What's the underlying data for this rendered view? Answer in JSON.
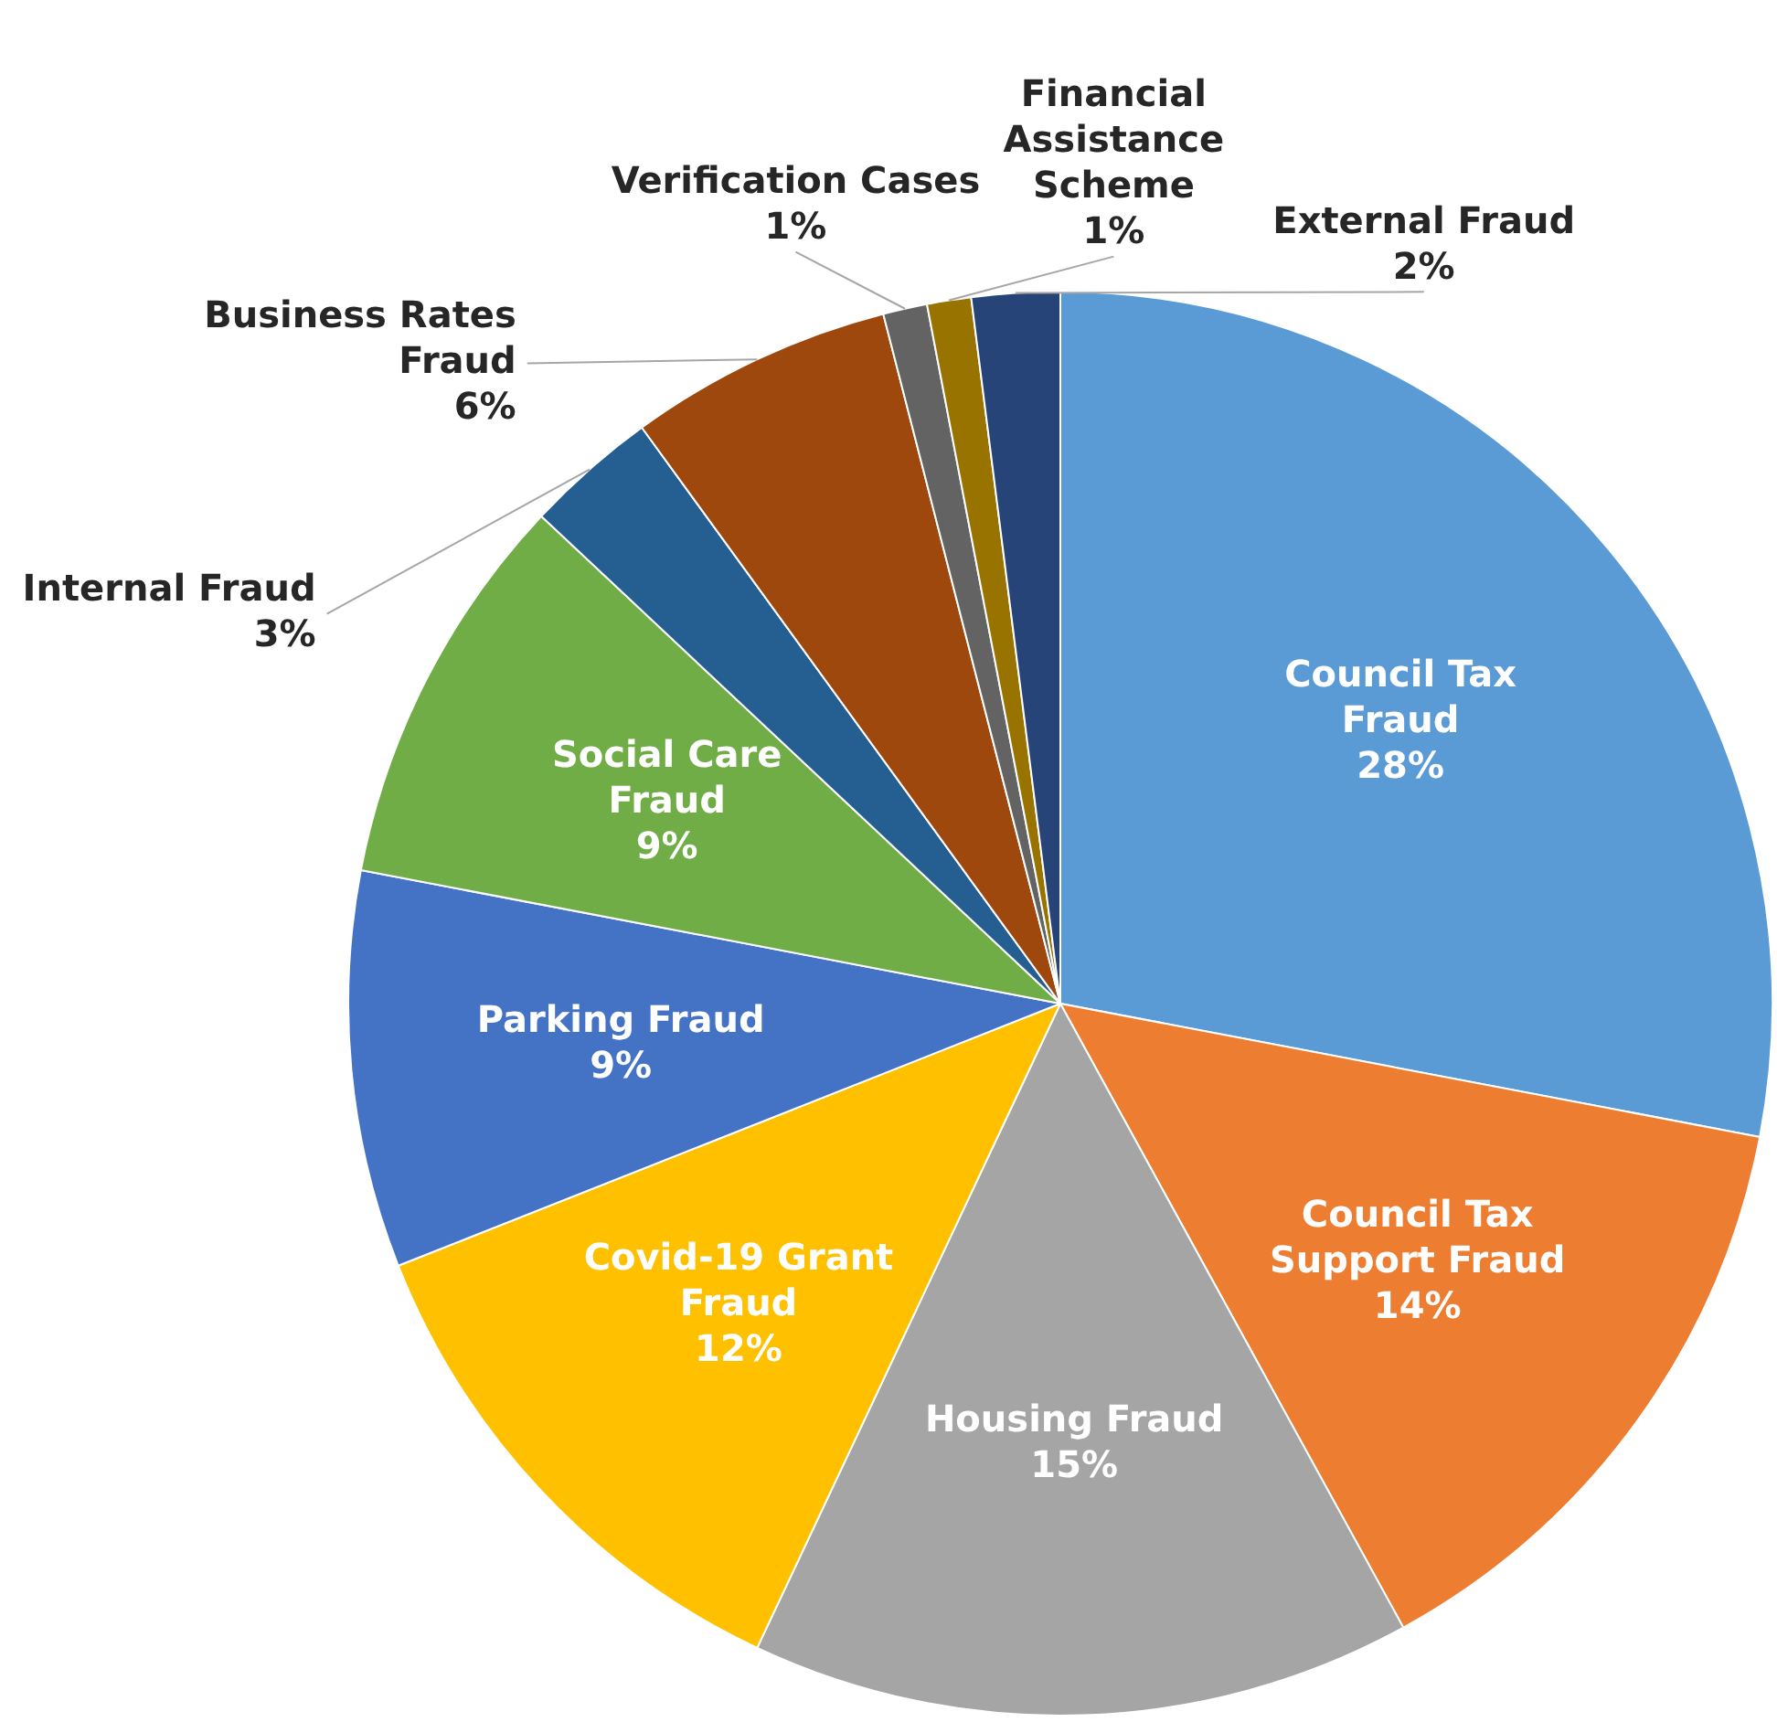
{
  "chart_data": {
    "type": "pie",
    "categories": [
      "Council Tax Fraud",
      "Council Tax Support Fraud",
      "Housing Fraud",
      "Covid-19 Grant Fraud",
      "Parking Fraud",
      "Social Care Fraud",
      "Internal Fraud",
      "Business Rates Fraud",
      "Verification Cases",
      "Financial Assistance Scheme",
      "External Fraud"
    ],
    "values": [
      28,
      14,
      15,
      12,
      9,
      9,
      3,
      6,
      1,
      1,
      2
    ],
    "value_labels": [
      "28%",
      "14%",
      "15%",
      "12%",
      "9%",
      "9%",
      "3%",
      "6%",
      "1%",
      "1%",
      "2%"
    ],
    "colors": [
      "#5b9bd5",
      "#ed7d31",
      "#a5a5a5",
      "#ffc000",
      "#4472c4",
      "#70ad47",
      "#255e91",
      "#9e480e",
      "#636363",
      "#997300",
      "#264478"
    ],
    "legend": false
  }
}
